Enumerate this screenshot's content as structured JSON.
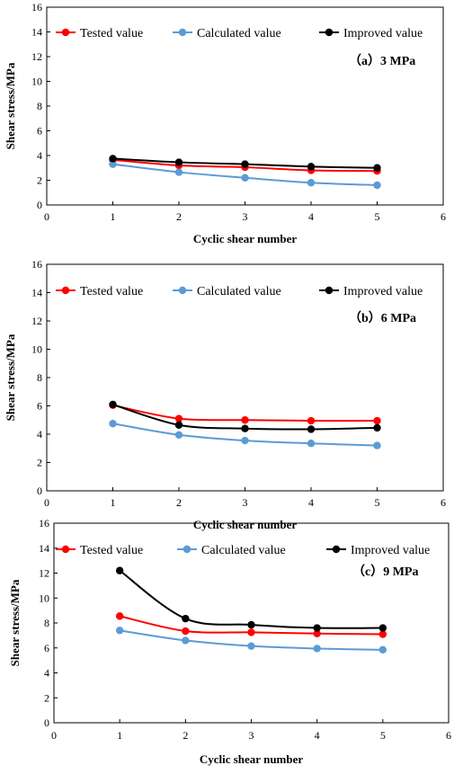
{
  "colors": {
    "tested": "#ff0000",
    "calculated": "#5b9bd5",
    "improved": "#000000"
  },
  "chart_data": [
    {
      "type": "line",
      "annotation": "（a）3 MPa",
      "xlabel": "Cyclic shear number",
      "ylabel": "Shear  stress/MPa",
      "xlim": [
        0,
        6
      ],
      "ylim": [
        0,
        16
      ],
      "xticks": [
        0,
        1,
        2,
        3,
        4,
        5,
        6
      ],
      "yticks": [
        0,
        2,
        4,
        6,
        8,
        10,
        12,
        14,
        16
      ],
      "x": [
        1,
        2,
        3,
        4,
        5
      ],
      "legend_position": "top",
      "grid": false,
      "series": [
        {
          "name": "Tested value",
          "values": [
            3.65,
            3.2,
            3.05,
            2.8,
            2.75
          ]
        },
        {
          "name": "Calculated value",
          "values": [
            3.3,
            2.65,
            2.2,
            1.8,
            1.6
          ]
        },
        {
          "name": "Improved value",
          "values": [
            3.75,
            3.45,
            3.3,
            3.1,
            3.0
          ]
        }
      ]
    },
    {
      "type": "line",
      "annotation": "（b）6 MPa",
      "xlabel": "Cyclic shear number",
      "ylabel": "Shear  stress/MPa",
      "xlim": [
        0,
        6
      ],
      "ylim": [
        0,
        16
      ],
      "xticks": [
        0,
        1,
        2,
        3,
        4,
        5,
        6
      ],
      "yticks": [
        0,
        2,
        4,
        6,
        8,
        10,
        12,
        14,
        16
      ],
      "x": [
        1,
        2,
        3,
        4,
        5
      ],
      "legend_position": "top",
      "grid": false,
      "series": [
        {
          "name": "Tested value",
          "values": [
            6.05,
            5.1,
            5.0,
            4.95,
            4.95
          ]
        },
        {
          "name": "Calculated value",
          "values": [
            4.75,
            3.95,
            3.55,
            3.35,
            3.2
          ]
        },
        {
          "name": "Improved value",
          "values": [
            6.1,
            4.65,
            4.4,
            4.35,
            4.45
          ]
        }
      ]
    },
    {
      "type": "line",
      "annotation": "（c）9 MPa",
      "xlabel": "Cyclic shear number",
      "ylabel": "Shear  stress/MPa",
      "xlim": [
        0,
        6
      ],
      "ylim": [
        0,
        16
      ],
      "xticks": [
        0,
        1,
        2,
        3,
        4,
        5,
        6
      ],
      "yticks": [
        0,
        2,
        4,
        6,
        8,
        10,
        12,
        14,
        16
      ],
      "x": [
        1,
        2,
        3,
        4,
        5
      ],
      "legend_position": "top",
      "grid": false,
      "series": [
        {
          "name": "Tested value",
          "values": [
            8.55,
            7.35,
            7.25,
            7.15,
            7.1
          ]
        },
        {
          "name": "Calculated value",
          "values": [
            7.4,
            6.6,
            6.15,
            5.95,
            5.85
          ]
        },
        {
          "name": "Improved value",
          "values": [
            12.2,
            8.35,
            7.85,
            7.6,
            7.6
          ]
        }
      ]
    }
  ]
}
